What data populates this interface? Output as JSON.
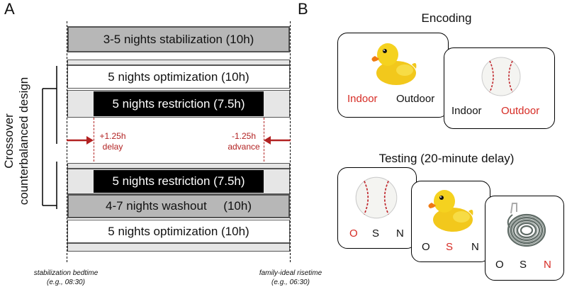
{
  "panel_a": {
    "letter": "A",
    "side_label_line1": "Crossover",
    "side_label_line2": "counterbalanced design",
    "bars": {
      "stabilization": "3-5 nights stabilization (10h)",
      "optimization_top": "5 nights optimization (10h)",
      "restriction_top": "5 nights restriction (7.5h)",
      "restriction_bottom": "5 nights restriction (7.5h)",
      "washout": "4-7 nights washout     (10h)",
      "optimization_bottom": "5 nights optimization (10h)"
    },
    "delay_line1": "+1.25h",
    "delay_line2": "delay",
    "advance_line1": "-1.25h",
    "advance_line2": "advance",
    "bedtime_line1": "stabilization bedtime",
    "bedtime_line2": "(e.g., 08:30)",
    "risetime_line1": "family-ideal risetime",
    "risetime_line2": "(e.g., 06:30)"
  },
  "panel_b": {
    "letter": "B",
    "encoding_title": "Encoding",
    "testing_title": "Testing (20-minute delay)",
    "encoding_cards": [
      {
        "object": "rubber-duck",
        "left": "Indoor",
        "right": "Outdoor",
        "highlight": "left"
      },
      {
        "object": "baseball",
        "left": "Indoor",
        "right": "Outdoor",
        "highlight": "right"
      }
    ],
    "testing_cards": [
      {
        "object": "baseball",
        "options": [
          "O",
          "S",
          "N"
        ],
        "highlight": 0
      },
      {
        "object": "rubber-duck",
        "options": [
          "O",
          "S",
          "N"
        ],
        "highlight": 1
      },
      {
        "object": "rope-coil",
        "options": [
          "O",
          "S",
          "N"
        ],
        "highlight": 2
      }
    ],
    "highlight_color": "#d62b24"
  }
}
